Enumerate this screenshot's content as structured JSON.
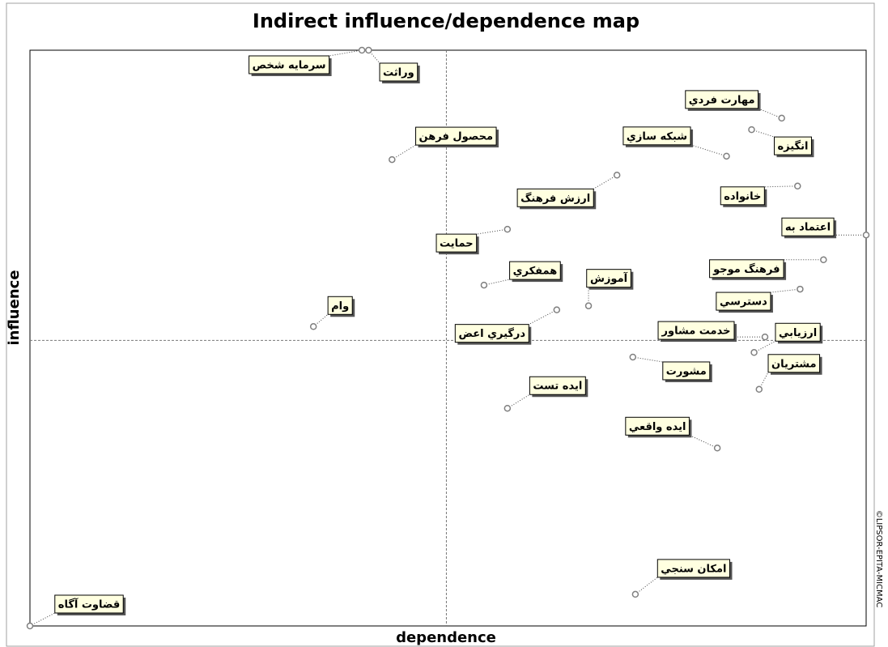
{
  "chart_data": {
    "type": "scatter",
    "title": "Indirect influence/dependence map",
    "xlabel": "dependence",
    "ylabel": "influence",
    "watermark": "©LIPSOR-EPITA-MICMAC",
    "xlim": [
      0,
      100
    ],
    "ylim": [
      0,
      100
    ],
    "quadrant_lines": {
      "x": 49.8,
      "y": 49.6
    },
    "point_color": "#808080",
    "label_fill": "#ffffe0",
    "points": [
      {
        "label": "وراثت",
        "x": 40.5,
        "y": 100
      },
      {
        "label": "سرمايه شخص",
        "x": 39.7,
        "y": 100
      },
      {
        "label": "مهارت فردي",
        "x": 89.9,
        "y": 88.2
      },
      {
        "label": "انگيزه",
        "x": 86.3,
        "y": 86.2
      },
      {
        "label": "شبكه سازي",
        "x": 83.3,
        "y": 81.6
      },
      {
        "label": "محصول فرهن",
        "x": 43.3,
        "y": 81.0
      },
      {
        "label": "ارزش فرهنگ",
        "x": 70.2,
        "y": 78.3
      },
      {
        "label": "خانواده",
        "x": 91.8,
        "y": 76.4
      },
      {
        "label": "اعتماد به",
        "x": 100,
        "y": 67.9
      },
      {
        "label": "حمايت",
        "x": 57.1,
        "y": 68.9
      },
      {
        "label": "همفكري",
        "x": 54.3,
        "y": 59.2
      },
      {
        "label": "آموزش",
        "x": 66.8,
        "y": 55.6
      },
      {
        "label": "فرهنگ موجو",
        "x": 94.9,
        "y": 63.6
      },
      {
        "label": "دسترسي",
        "x": 92.1,
        "y": 58.5
      },
      {
        "label": "وام",
        "x": 33.9,
        "y": 52.0
      },
      {
        "label": "درگيري اعض",
        "x": 63.0,
        "y": 54.9
      },
      {
        "label": "خدمت مشاور",
        "x": 87.9,
        "y": 50.2
      },
      {
        "label": "ارزيابي",
        "x": 86.6,
        "y": 47.5
      },
      {
        "label": "مشتريان",
        "x": 87.2,
        "y": 41.1
      },
      {
        "label": "مشورت",
        "x": 72.1,
        "y": 46.7
      },
      {
        "label": "ايده تست",
        "x": 57.1,
        "y": 37.8
      },
      {
        "label": "ايده واقعي",
        "x": 82.2,
        "y": 30.9
      },
      {
        "label": "امكان سنجي",
        "x": 72.4,
        "y": 5.5
      },
      {
        "label": "قضاوت آگاه",
        "x": 0,
        "y": 0
      }
    ]
  }
}
